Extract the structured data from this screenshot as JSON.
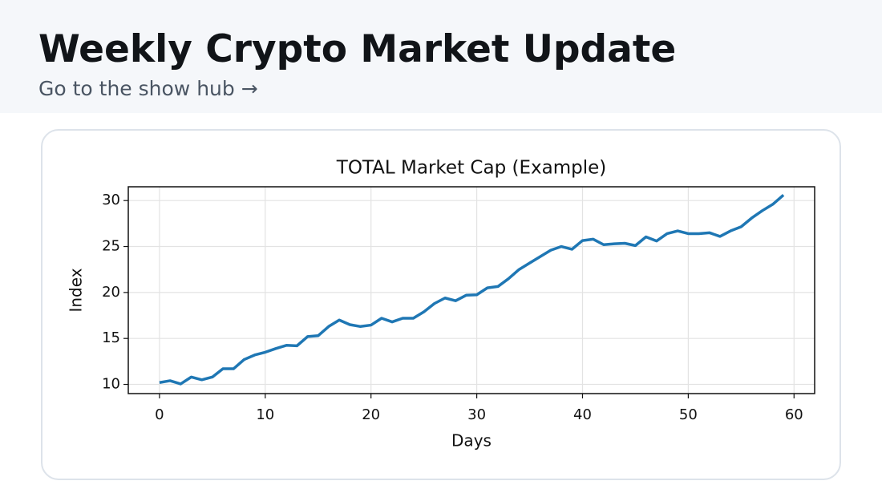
{
  "header": {
    "title": "Weekly Crypto Market Update",
    "link": "Go to the show hub →"
  },
  "chart_data": {
    "type": "line",
    "title": "TOTAL Market Cap (Example)",
    "x_label": "Days",
    "y_label": "Index",
    "x": [
      0,
      1,
      2,
      3,
      4,
      5,
      6,
      7,
      8,
      9,
      10,
      11,
      12,
      13,
      14,
      15,
      16,
      17,
      18,
      19,
      20,
      21,
      22,
      23,
      24,
      25,
      26,
      27,
      28,
      29,
      30,
      31,
      32,
      33,
      34,
      35,
      36,
      37,
      38,
      39,
      40,
      41,
      42,
      43,
      44,
      45,
      46,
      47,
      48,
      49,
      50,
      51,
      52,
      53,
      54,
      55,
      56,
      57,
      58,
      59
    ],
    "series": [
      {
        "color": "#1f77b4",
        "values": [
          10.2,
          10.4,
          10.05,
          10.8,
          10.5,
          10.8,
          11.7,
          11.7,
          12.7,
          13.2,
          13.5,
          13.9,
          14.25,
          14.2,
          15.2,
          15.3,
          16.3,
          17.0,
          16.5,
          16.3,
          16.45,
          17.2,
          16.8,
          17.2,
          17.2,
          17.9,
          18.8,
          19.4,
          19.1,
          19.7,
          19.75,
          20.5,
          20.65,
          21.5,
          22.5,
          23.2,
          23.9,
          24.6,
          25.0,
          24.7,
          25.65,
          25.8,
          25.2,
          25.3,
          25.35,
          25.1,
          26.05,
          25.6,
          26.4,
          26.7,
          26.4,
          26.4,
          26.5,
          26.1,
          26.7,
          27.15,
          28.1,
          28.9,
          29.6,
          30.6
        ]
      }
    ],
    "xlim": [
      -2.95,
      61.95
    ],
    "xticks": [
      0,
      10,
      20,
      30,
      40,
      50,
      60
    ],
    "ylim": [
      9.0,
      31.5
    ],
    "yticks": [
      10,
      15,
      20,
      25,
      30
    ],
    "grid": true
  }
}
